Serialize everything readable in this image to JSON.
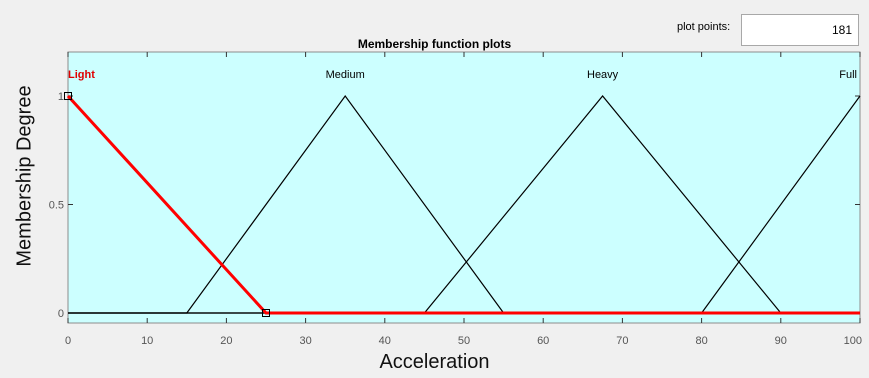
{
  "plot_points": {
    "label": "plot points:",
    "value": "181"
  },
  "colors": {
    "plot_background": "#ccffff",
    "selected": "#ff0000",
    "normal": "#000000",
    "window_background": "#f0f0f0"
  },
  "chart_data": {
    "type": "line",
    "title": "Membership function plots",
    "xlabel": "Acceleration",
    "ylabel": "Membership Degree",
    "xlim": [
      0,
      100
    ],
    "ylim": [
      0,
      1
    ],
    "xticks": [
      0,
      10,
      20,
      30,
      40,
      50,
      60,
      70,
      80,
      90,
      100
    ],
    "xtick_labels": [
      "0",
      "10",
      "20",
      "30",
      "40",
      "50",
      "60",
      "70",
      "80",
      "90",
      "100"
    ],
    "yticks": [
      0,
      0.5,
      1
    ],
    "ytick_labels": [
      "0",
      "0.5",
      "1"
    ],
    "grid": false,
    "series": [
      {
        "name": "Light",
        "x": [
          0,
          0,
          25,
          100
        ],
        "y": [
          1,
          1,
          0,
          0
        ],
        "selected": true,
        "label_x": 0
      },
      {
        "name": "Medium",
        "x": [
          0,
          15,
          35,
          55,
          100
        ],
        "y": [
          0,
          0,
          1,
          0,
          0
        ],
        "selected": false,
        "label_x": 35
      },
      {
        "name": "Heavy",
        "x": [
          0,
          45,
          67.5,
          90,
          100
        ],
        "y": [
          0,
          0,
          1,
          0,
          0
        ],
        "selected": false,
        "label_x": 67.5
      },
      {
        "name": "Full",
        "x": [
          0,
          80,
          100
        ],
        "y": [
          0,
          0,
          1
        ],
        "selected": false,
        "label_x": 100
      }
    ]
  }
}
